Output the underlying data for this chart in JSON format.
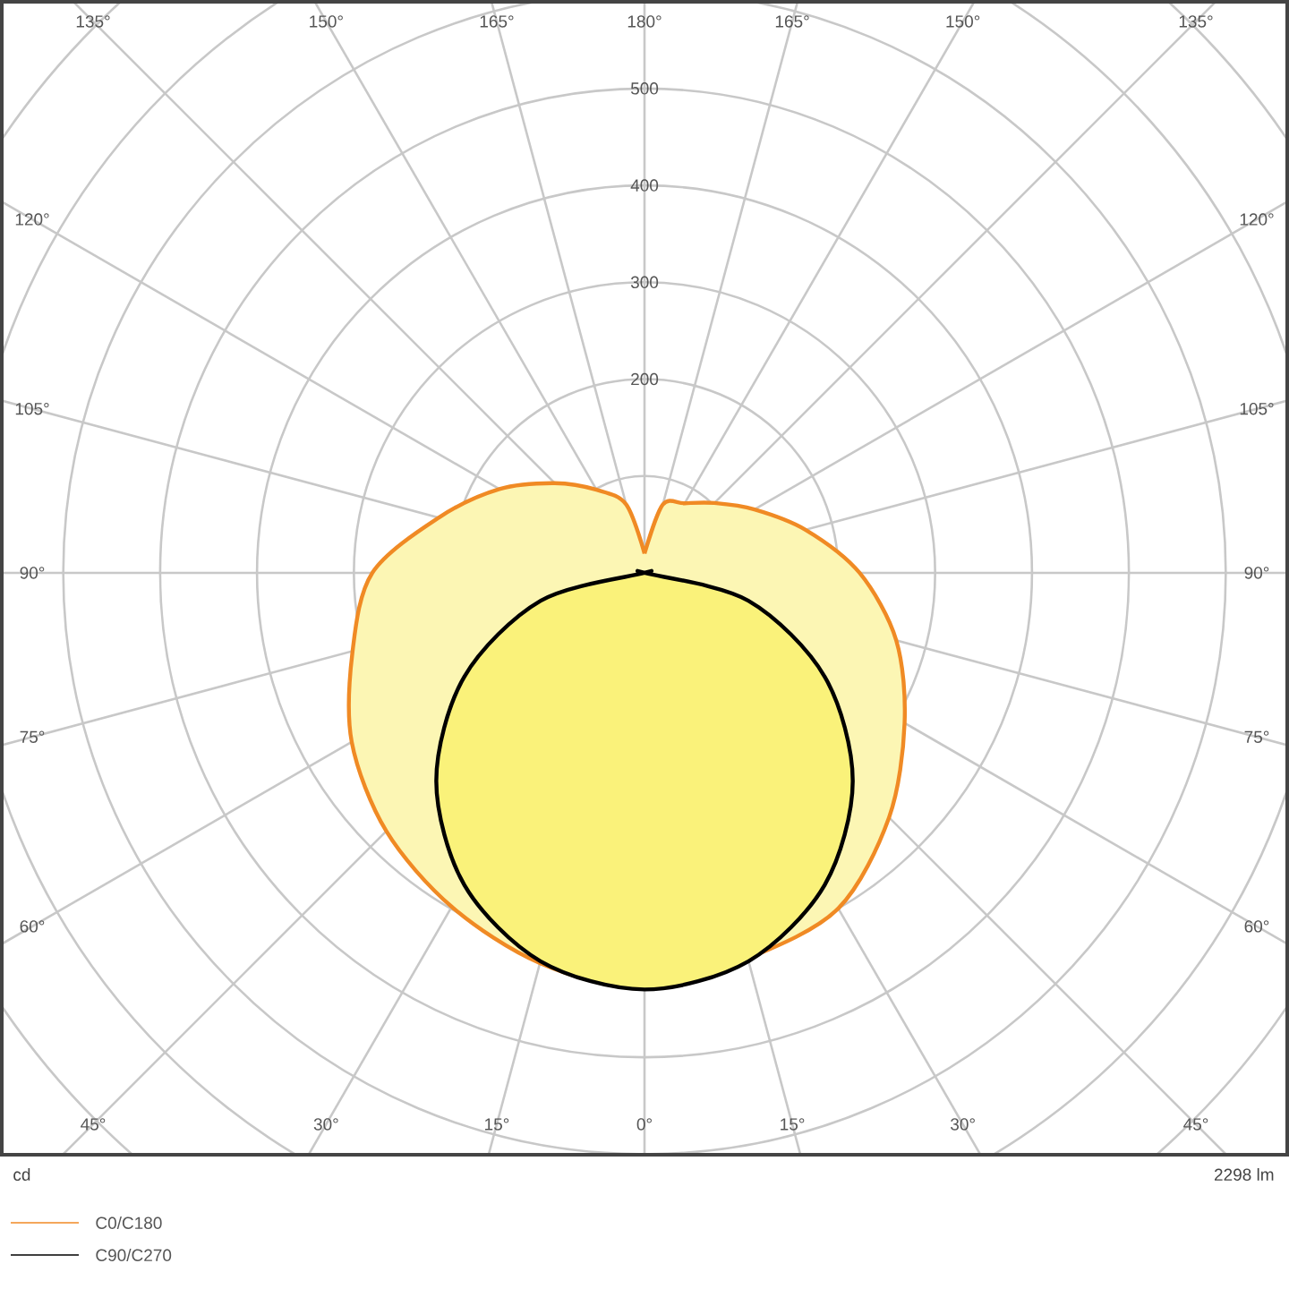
{
  "chart_data": {
    "type": "radar",
    "categories": [
      "180°",
      "165°",
      "150°",
      "135°",
      "120°",
      "105°",
      "90°",
      "75°",
      "60°",
      "45°",
      "30°",
      "15°",
      "0°",
      "15°",
      "30°",
      "45°",
      "60°",
      "75°",
      "90°",
      "105°",
      "120°",
      "135°",
      "150°",
      "165°"
    ],
    "series": [
      {
        "name": "C0/C180",
        "color": "#f08a24",
        "values": [
          20,
          73,
          83,
          102,
          131,
          172,
          222,
          269,
          310,
          357,
          400,
          412,
          429,
          417,
          398,
          377,
          349,
          312,
          281,
          220,
          173,
          131,
          99,
          73
        ]
      },
      {
        "name": "C90/C270",
        "color": "#000000",
        "values": [
          0,
          0,
          0,
          0,
          0,
          0,
          0,
          111,
          215,
          304,
          372,
          415,
          430,
          415,
          372,
          304,
          215,
          111,
          0,
          0,
          0,
          0,
          0,
          0
        ]
      }
    ],
    "ylim": [
      0,
      900
    ],
    "yticks": [
      {
        "value": 200,
        "label": "200"
      },
      {
        "value": 300,
        "label": "300"
      },
      {
        "value": 400,
        "label": "400"
      },
      {
        "value": 500,
        "label": "500"
      }
    ],
    "grid": true,
    "legend": "bottom left",
    "annotations": [
      "cd",
      "2298 lm"
    ]
  }
}
